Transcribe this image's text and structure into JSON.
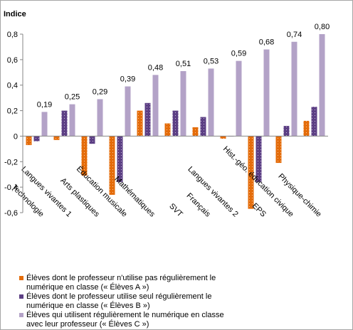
{
  "colors": {
    "A": "#E46C0A",
    "B": "#5C3F84",
    "C": "#B3A2C7",
    "axis": "#868686"
  },
  "chart_data": {
    "type": "bar",
    "ylabel": "Indice",
    "ylim": [
      -0.6,
      0.8
    ],
    "yticks": [
      "0,8",
      "0,6",
      "0,4",
      "0,2",
      "0",
      "-0,2",
      "-0,4",
      "-0,6"
    ],
    "yticks_values": [
      0.8,
      0.6,
      0.4,
      0.2,
      0,
      -0.2,
      -0.4,
      -0.6
    ],
    "grid": false,
    "legend_position": "bottom-left",
    "categories": [
      "Technologie",
      "Langues vivantes 1",
      "Arts plastiques",
      "Éducation musicale",
      "Mathématiques",
      "SVT",
      "Français",
      "Langues vivantes 2",
      "EPS",
      "Hist.-géo. éducation civique",
      "Physique-chimie"
    ],
    "series": [
      {
        "name": "Élèves dont le professeur n'utilise pas régulièrement le numérique en classe (« Élèves A »)",
        "values": [
          -0.07,
          -0.03,
          -0.31,
          -0.46,
          0.2,
          0.1,
          0.07,
          -0.02,
          -0.57,
          -0.21,
          0.12
        ]
      },
      {
        "name": "Élèves dont le professeur utilise seul régulièrement le numérique en classe (« Élèves B »)",
        "values": [
          -0.04,
          0.2,
          -0.06,
          -0.36,
          0.26,
          0.2,
          0.15,
          0.0,
          -0.36,
          0.08,
          0.23
        ]
      },
      {
        "name": "Élèves qui utilisent régulièrement le numérique en classe avec leur professeur (« Élèves C »)",
        "values": [
          0.19,
          0.25,
          0.29,
          0.39,
          0.48,
          0.51,
          0.53,
          0.59,
          0.68,
          0.74,
          0.8
        ]
      }
    ],
    "data_labels_C": [
      "0,19",
      "0,25",
      "0,29",
      "0,39",
      "0,48",
      "0,51",
      "0,53",
      "0,59",
      "0,68",
      "0,74",
      "0,80"
    ]
  },
  "legend": {
    "items": [
      {
        "line1": "Élèves dont le professeur n'utilise pas régulièrement le",
        "line2": "numérique en classe (« Élèves A »)"
      },
      {
        "line1": "Élèves dont le professeur utilise seul régulièrement le",
        "line2": "numérique en classe (« Élèves B »)"
      },
      {
        "line1": "Élèves qui utilisent régulièrement le numérique en classe",
        "line2": "avec leur professeur (« Élèves C »)"
      }
    ]
  }
}
